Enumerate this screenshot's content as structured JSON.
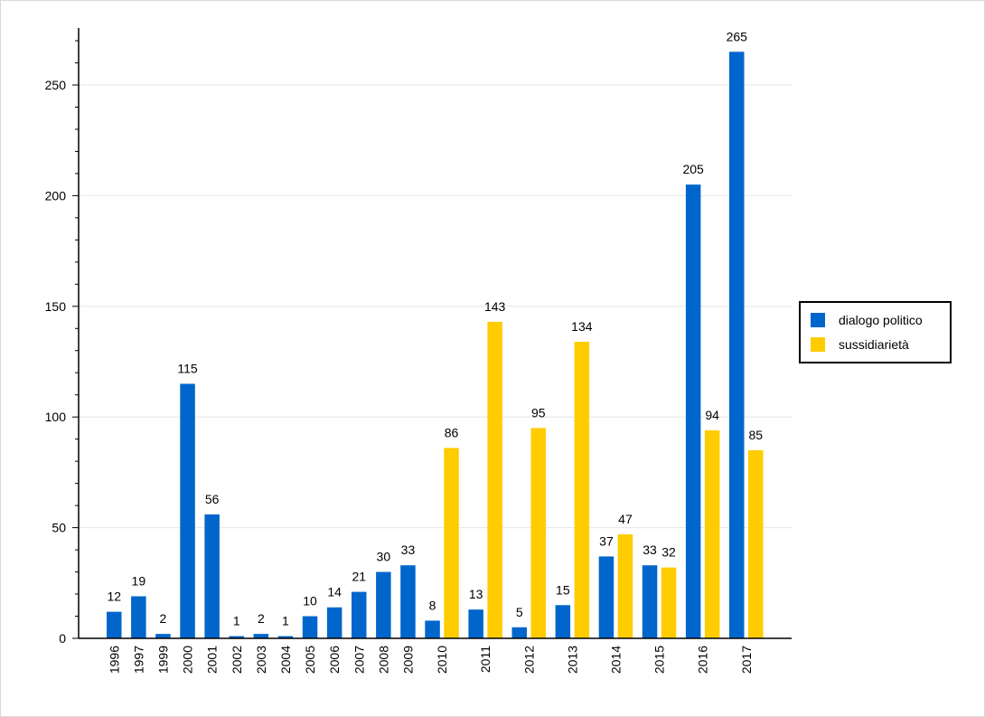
{
  "chart_data": {
    "type": "bar",
    "title": "",
    "xlabel": "",
    "ylabel": "",
    "ylim": [
      0,
      275
    ],
    "yticks": [
      0,
      50,
      100,
      150,
      200,
      250
    ],
    "grid": true,
    "legend_position": "right",
    "categories": [
      "1996",
      "1997",
      "1999",
      "2000",
      "2001",
      "2002",
      "2003",
      "2004",
      "2005",
      "2006",
      "2007",
      "2008",
      "2009",
      "2010",
      "2011",
      "2012",
      "2013",
      "2014",
      "2015",
      "2016",
      "2017"
    ],
    "series": [
      {
        "name": "dialogo politico",
        "color": "#0066CC",
        "values": [
          12,
          19,
          2,
          115,
          56,
          1,
          2,
          1,
          10,
          14,
          21,
          30,
          33,
          8,
          13,
          5,
          15,
          37,
          33,
          205,
          265
        ]
      },
      {
        "name": "sussidiarietà",
        "color": "#FFCC00",
        "values": [
          null,
          null,
          null,
          null,
          null,
          null,
          null,
          null,
          null,
          null,
          null,
          null,
          null,
          86,
          143,
          95,
          134,
          47,
          32,
          94,
          85
        ]
      }
    ]
  }
}
